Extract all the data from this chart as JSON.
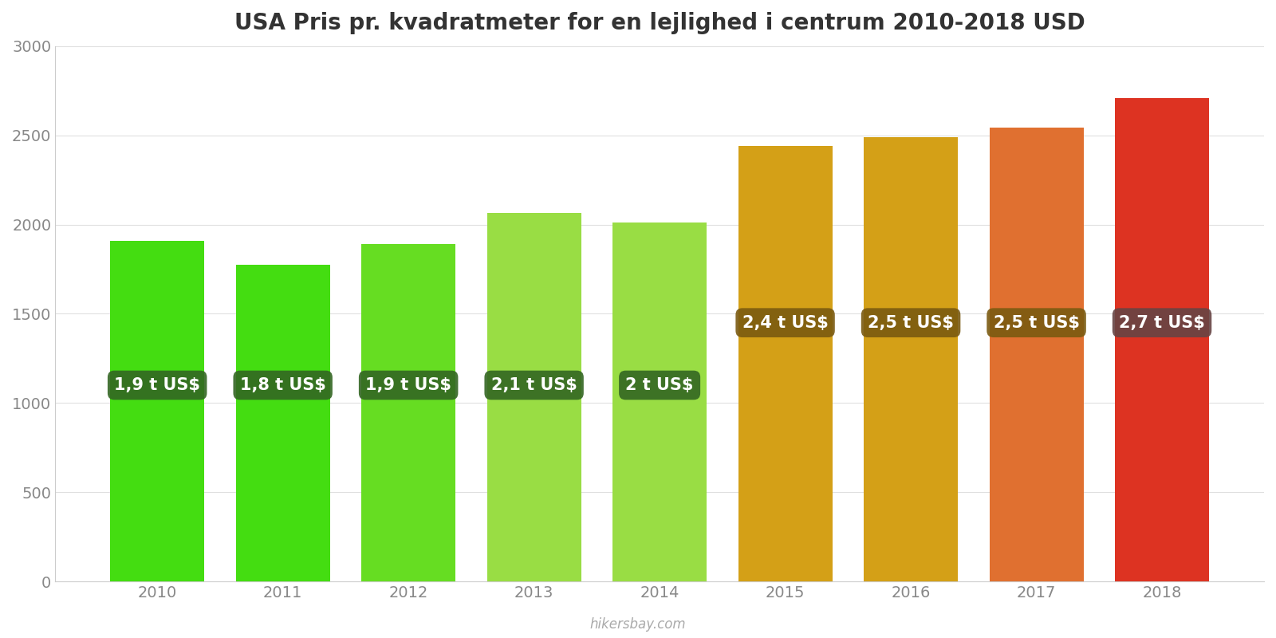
{
  "title": "USA Pris pr. kvadratmeter for en lejlighed i centrum 2010-2018 USD",
  "years": [
    2010,
    2011,
    2012,
    2013,
    2014,
    2015,
    2016,
    2017,
    2018
  ],
  "values": [
    1910,
    1775,
    1890,
    2065,
    2010,
    2440,
    2490,
    2545,
    2710
  ],
  "bar_colors": [
    "#44dd11",
    "#44dd11",
    "#66dd22",
    "#99dd44",
    "#99dd44",
    "#d4a017",
    "#d4a017",
    "#e07030",
    "#dd3322"
  ],
  "label_bg_colors": [
    "#336622",
    "#336622",
    "#336622",
    "#336622",
    "#336622",
    "#7a5a10",
    "#7a5a10",
    "#7a5a10",
    "#664444"
  ],
  "labels": [
    "1,9 t US$",
    "1,8 t US$",
    "1,9 t US$",
    "2,1 t US$",
    "2 t US$",
    "2,4 t US$",
    "2,5 t US$",
    "2,5 t US$",
    "2,7 t US$"
  ],
  "label_text_color": "#ffffff",
  "label_y_positions": [
    1100,
    1100,
    1100,
    1100,
    1100,
    1450,
    1450,
    1450,
    1450
  ],
  "ylim": [
    0,
    3000
  ],
  "yticks": [
    0,
    500,
    1000,
    1500,
    2000,
    2500,
    3000
  ],
  "background_color": "#ffffff",
  "watermark": "hikersbay.com",
  "title_fontsize": 20,
  "tick_fontsize": 14,
  "label_fontsize": 15
}
